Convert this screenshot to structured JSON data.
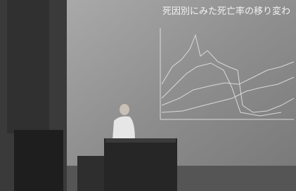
{
  "scene": {
    "slide_title": "死因別にみた死亡率の移り変わ"
  }
}
